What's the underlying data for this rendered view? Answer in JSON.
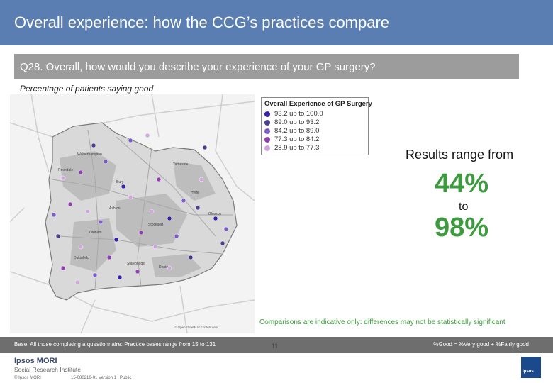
{
  "header": {
    "title": "Overall experience: how the CCG’s practices compare"
  },
  "question": {
    "text": "Q28. Overall, how would you describe your experience of your GP surgery?"
  },
  "subtitle": "Percentage of patients saying good",
  "legend": {
    "title": "Overall Experience of GP Surgery",
    "items": [
      {
        "range": "93.2 up to 100.0",
        "color": "#3a1fa8"
      },
      {
        "range": "89.0 up to 93.2",
        "color": "#4b3f8f"
      },
      {
        "range": "84.2 up to 89.0",
        "color": "#7b5cc7"
      },
      {
        "range": "77.3 up to 84.2",
        "color": "#8f3fb0"
      },
      {
        "range": "28.9 up to 77.3",
        "color": "#cfa6dd"
      }
    ]
  },
  "results": {
    "label": "Results range from",
    "low": "44%",
    "to": "to",
    "high": "98%"
  },
  "caveat": "Comparisons are indicative only: differences may not be statistically significant",
  "map": {
    "place_labels": [
      "Wolverhampton",
      "Tameside",
      "Stockport",
      "Oldham",
      "Rochdale",
      "Ashton",
      "Hyde",
      "Glossop",
      "Bury",
      "Denton",
      "Dukinfield",
      "Stalybridge"
    ],
    "map_credit": "© OpenStreetMap contributors"
  },
  "footer": {
    "base": "Base: All those completing a questionnaire: Practice bases range from 15 to 131",
    "good_def": "%Good = %Very good + %Fairly good",
    "page": "11",
    "logo_main": "Ipsos MORI",
    "logo_sub": "Social Research Institute",
    "copyright": "© Ipsos MORI",
    "job_ref": "15-080216-01 Version 1 | Public",
    "ipsos_logo": "Ipsos"
  }
}
